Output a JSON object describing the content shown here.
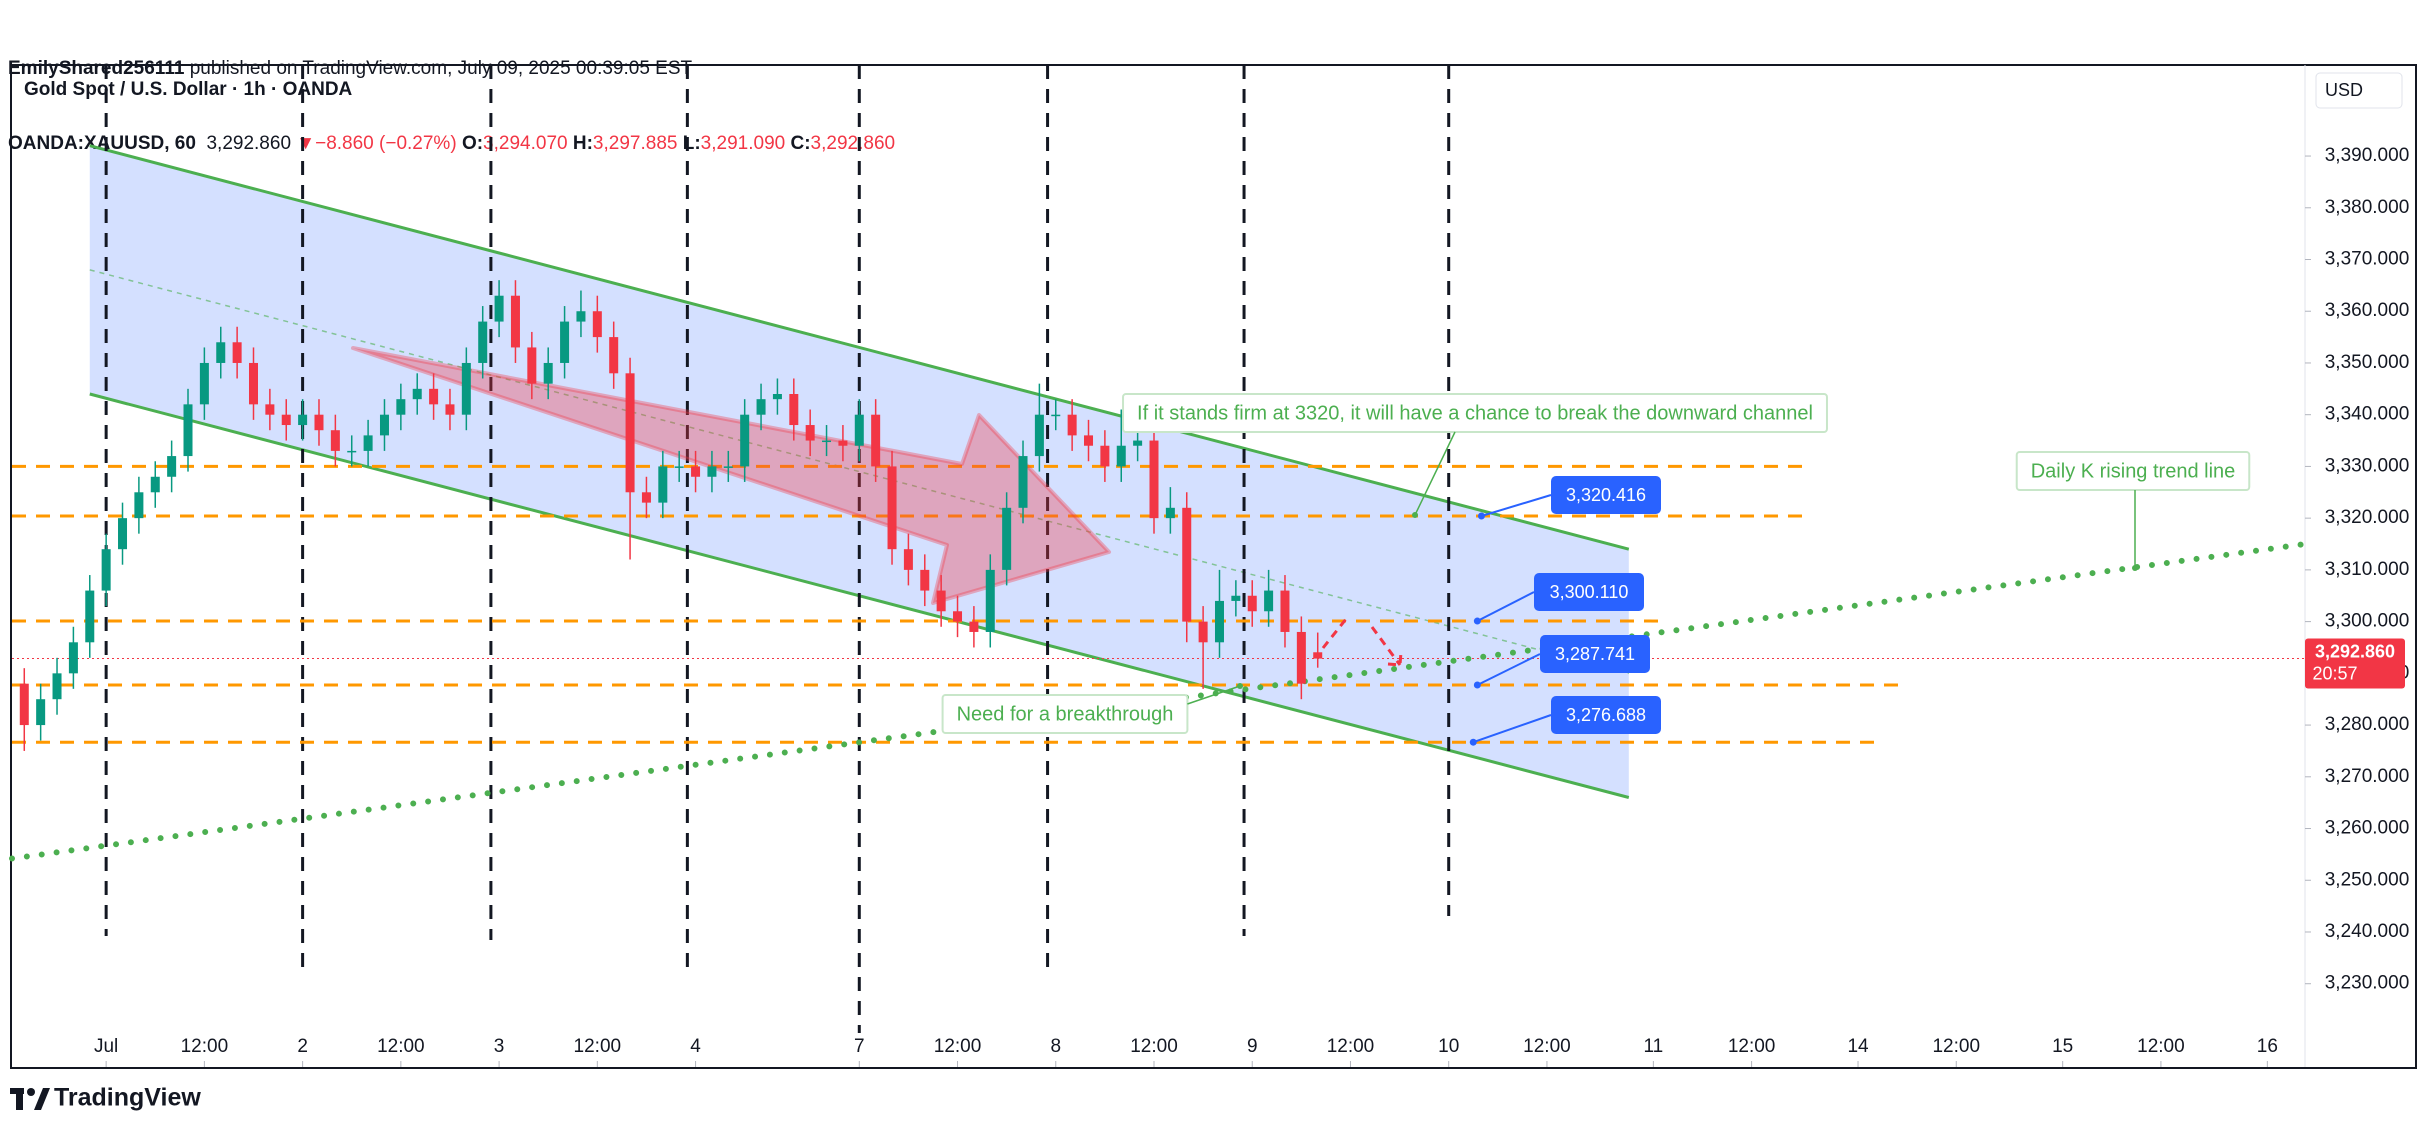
{
  "header": {
    "author": "EmilyShared256111",
    "published": " published on TradingView.com, July 09, 2025 00:39:05 EST",
    "symbol": "OANDA:XAUUSD, 60",
    "last": "3,292.860",
    "arrow": "▼",
    "change": "−8.860 (−0.27%)",
    "ohlc": [
      {
        "key": "O:",
        "value": "3,294.070"
      },
      {
        "key": "H:",
        "value": "3,297.885"
      },
      {
        "key": "L:",
        "value": "3,291.090"
      },
      {
        "key": "C:",
        "value": "3,292.860"
      }
    ]
  },
  "footer": {
    "brand": "TradingView"
  },
  "chart_data": {
    "type": "candlestick",
    "title": "Gold Spot / U.S. Dollar · 1h · OANDA",
    "currency": "USD",
    "colors": {
      "up": "#089981",
      "down": "#f23645"
    },
    "x": [
      -10,
      -8,
      -6,
      -4,
      -2,
      0,
      2,
      4,
      6,
      8,
      10,
      12,
      14,
      16,
      18,
      20,
      22,
      24,
      26,
      28,
      30,
      32,
      34,
      36,
      38,
      40,
      42,
      44,
      46,
      48,
      50,
      52,
      54,
      56,
      58,
      60,
      62,
      64,
      66,
      68,
      70,
      72,
      74,
      76,
      78,
      80,
      82,
      84,
      86,
      88,
      90,
      92,
      94,
      96,
      98,
      100,
      102,
      104,
      106,
      108,
      110,
      112,
      114,
      116,
      118,
      120,
      122,
      124,
      126,
      128,
      130,
      132,
      134,
      136,
      138,
      140,
      142,
      144,
      146,
      148
    ],
    "open": [
      3288,
      3280,
      3285,
      3290,
      3296,
      3306,
      3314,
      3320,
      3325,
      3328,
      3332,
      3342,
      3350,
      3354,
      3350,
      3342,
      3340,
      3338,
      3340,
      3337,
      3333,
      3333,
      3336,
      3340,
      3343,
      3345,
      3342,
      3340,
      3350,
      3358,
      3363,
      3353,
      3346,
      3350,
      3358,
      3360,
      3355,
      3348,
      3325,
      3323,
      3330,
      3330,
      3328,
      3330,
      3330,
      3340,
      3343,
      3344,
      3338,
      3335,
      3335,
      3334,
      3340,
      3330,
      3314,
      3310,
      3306,
      3302,
      3300,
      3298,
      3310,
      3322,
      3332,
      3340,
      3340,
      3336,
      3334,
      3330,
      3334,
      3335,
      3320,
      3322,
      3300,
      3296,
      3304,
      3305,
      3302,
      3306,
      3298,
      3294.07
    ],
    "high": [
      3291,
      3288,
      3293,
      3299,
      3309,
      3317,
      3323,
      3328,
      3331,
      3335,
      3345,
      3353,
      3357,
      3357,
      3353,
      3345,
      3343,
      3343,
      3343,
      3340,
      3336,
      3339,
      3343,
      3346,
      3348,
      3348,
      3345,
      3353,
      3361,
      3366,
      3366,
      3356,
      3353,
      3361,
      3364,
      3363,
      3358,
      3351,
      3328,
      3333,
      3333,
      3333,
      3333,
      3333,
      3343,
      3346,
      3347,
      3347,
      3341,
      3338,
      3338,
      3343,
      3343,
      3333,
      3317,
      3313,
      3309,
      3305,
      3303,
      3313,
      3325,
      3335,
      3346,
      3343,
      3343,
      3339,
      3337,
      3341,
      3338,
      3338,
      3326,
      3325,
      3303,
      3310,
      3308,
      3308,
      3310,
      3309,
      3301,
      3297.885
    ],
    "low": [
      3275,
      3277,
      3282,
      3287,
      3293,
      3303,
      3311,
      3317,
      3322,
      3325,
      3329,
      3339,
      3347,
      3347,
      3339,
      3337,
      3335,
      3335,
      3334,
      3330,
      3330,
      3330,
      3333,
      3337,
      3340,
      3339,
      3337,
      3337,
      3347,
      3355,
      3350,
      3343,
      3343,
      3347,
      3355,
      3352,
      3345,
      3312,
      3320,
      3320,
      3327,
      3325,
      3325,
      3327,
      3327,
      3337,
      3340,
      3335,
      3332,
      3332,
      3331,
      3331,
      3327,
      3311,
      3307,
      3303,
      3299,
      3297,
      3295,
      3295,
      3307,
      3319,
      3329,
      3337,
      3333,
      3331,
      3327,
      3327,
      3331,
      3317,
      3317,
      3296,
      3287,
      3293,
      3301,
      3299,
      3299,
      3295,
      3285,
      3291.09
    ],
    "close": [
      3280,
      3285,
      3290,
      3296,
      3306,
      3314,
      3320,
      3325,
      3328,
      3332,
      3342,
      3350,
      3354,
      3350,
      3342,
      3340,
      3338,
      3340,
      3337,
      3333,
      3333,
      3336,
      3340,
      3343,
      3345,
      3342,
      3340,
      3350,
      3358,
      3363,
      3353,
      3346,
      3350,
      3358,
      3360,
      3355,
      3348,
      3325,
      3323,
      3330,
      3330,
      3328,
      3330,
      3330,
      3340,
      3343,
      3344,
      3338,
      3335,
      3335,
      3334,
      3340,
      3330,
      3314,
      3310,
      3306,
      3302,
      3300,
      3298,
      3310,
      3322,
      3332,
      3340,
      3340,
      3336,
      3334,
      3330,
      3334,
      3335,
      3320,
      3322,
      3300,
      3296,
      3304,
      3305,
      3302,
      3306,
      3298,
      3288,
      3292.86
    ],
    "xlim": [
      -11.5,
      268.6
    ],
    "xticks": [
      {
        "value": 0,
        "label": "Jul"
      },
      {
        "value": 12,
        "label": "12:00"
      },
      {
        "value": 24,
        "label": "2"
      },
      {
        "value": 36,
        "label": "12:00"
      },
      {
        "value": 48,
        "label": "3"
      },
      {
        "value": 60,
        "label": "12:00"
      },
      {
        "value": 72,
        "label": "4"
      },
      {
        "value": 92,
        "label": "7"
      },
      {
        "value": 104,
        "label": "12:00"
      },
      {
        "value": 116,
        "label": "8"
      },
      {
        "value": 128,
        "label": "12:00"
      },
      {
        "value": 140,
        "label": "9"
      },
      {
        "value": 152,
        "label": "12:00"
      },
      {
        "value": 164,
        "label": "10"
      },
      {
        "value": 176,
        "label": "12:00"
      },
      {
        "value": 189,
        "label": "11"
      },
      {
        "value": 201,
        "label": "12:00"
      },
      {
        "value": 214,
        "label": "14"
      },
      {
        "value": 226,
        "label": "12:00"
      },
      {
        "value": 239,
        "label": "15"
      },
      {
        "value": 251,
        "label": "12:00"
      },
      {
        "value": 264,
        "label": "16"
      }
    ],
    "ylim": [
      3213.9,
      3407.6
    ],
    "yticks": [
      {
        "value": 3230,
        "label": "3,230.000"
      },
      {
        "value": 3240,
        "label": "3,240.000"
      },
      {
        "value": 3250,
        "label": "3,250.000"
      },
      {
        "value": 3260,
        "label": "3,260.000"
      },
      {
        "value": 3270,
        "label": "3,270.000"
      },
      {
        "value": 3280,
        "label": "3,280.000"
      },
      {
        "value": 3290,
        "label": "3,290.000"
      },
      {
        "value": 3300,
        "label": "3,300.000"
      },
      {
        "value": 3310,
        "label": "3,310.000"
      },
      {
        "value": 3320,
        "label": "3,320.000"
      },
      {
        "value": 3330,
        "label": "3,330.000"
      },
      {
        "value": 3340,
        "label": "3,340.000"
      },
      {
        "value": 3350,
        "label": "3,350.000"
      },
      {
        "value": 3360,
        "label": "3,360.000"
      },
      {
        "value": 3370,
        "label": "3,370.000"
      },
      {
        "value": 3380,
        "label": "3,380.000"
      },
      {
        "value": 3390,
        "label": "3,390.000"
      }
    ],
    "last_price": {
      "value": 3292.86,
      "label": "3,292.860",
      "countdown": "20:57"
    },
    "levels": [
      3330
    ],
    "marked_levels": {
      "values": [
        3320.416,
        3300.11,
        3287.741,
        3276.688
      ],
      "value_labels": [
        "3,320.416",
        "3,300.110",
        "3,287.741",
        "3,276.688"
      ]
    },
    "channel": {
      "x": [
        -2,
        186
      ],
      "upper": [
        3392,
        3314
      ],
      "lower": [
        3344,
        3266
      ]
    },
    "trend_line": {
      "x": [
        -11.5,
        268.6
      ],
      "values": [
        3254.2,
        3315
      ]
    },
    "sessions": [
      0,
      24,
      47,
      71,
      92,
      115,
      139,
      164
    ],
    "annotations": [
      "If it stands firm at 3320, it will have a chance to break the downward channel",
      "Daily K rising trend line",
      "Need for a breakthrough"
    ]
  }
}
